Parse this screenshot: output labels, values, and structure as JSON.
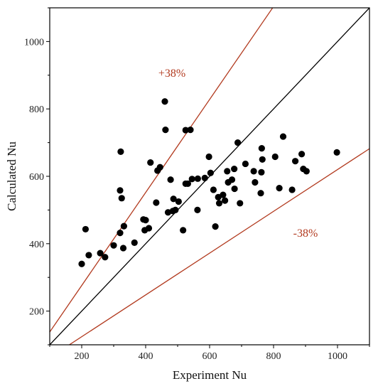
{
  "chart_data": {
    "type": "scatter",
    "title": "",
    "xlabel": "Experiment Nu",
    "ylabel": "Calculated Nu",
    "xlim": [
      100,
      1100
    ],
    "ylim": [
      100,
      1100
    ],
    "xticks": [
      200,
      400,
      600,
      800,
      1000
    ],
    "yticks": [
      200,
      400,
      600,
      800,
      1000
    ],
    "grid": false,
    "reference_lines": [
      {
        "label": "",
        "slope": 1.0,
        "color": "#000000"
      },
      {
        "label": "+38%",
        "slope": 1.38,
        "color": "#b23a1f"
      },
      {
        "label": "-38%",
        "slope": 0.62,
        "color": "#b23a1f"
      }
    ],
    "series": [
      {
        "marker_color": "#000000",
        "points": [
          [
            200,
            340
          ],
          [
            212,
            443
          ],
          [
            222,
            366
          ],
          [
            258,
            372
          ],
          [
            273,
            360
          ],
          [
            300,
            395
          ],
          [
            320,
            558
          ],
          [
            322,
            673
          ],
          [
            325,
            535
          ],
          [
            320,
            432
          ],
          [
            330,
            387
          ],
          [
            332,
            452
          ],
          [
            365,
            403
          ],
          [
            393,
            472
          ],
          [
            397,
            440
          ],
          [
            400,
            470
          ],
          [
            410,
            446
          ],
          [
            415,
            641
          ],
          [
            433,
            522
          ],
          [
            437,
            617
          ],
          [
            445,
            627
          ],
          [
            460,
            822
          ],
          [
            462,
            738
          ],
          [
            470,
            493
          ],
          [
            478,
            590
          ],
          [
            485,
            497
          ],
          [
            487,
            533
          ],
          [
            493,
            500
          ],
          [
            503,
            525
          ],
          [
            517,
            440
          ],
          [
            525,
            737
          ],
          [
            525,
            578
          ],
          [
            532,
            578
          ],
          [
            540,
            738
          ],
          [
            545,
            592
          ],
          [
            562,
            500
          ],
          [
            563,
            593
          ],
          [
            585,
            595
          ],
          [
            598,
            658
          ],
          [
            603,
            610
          ],
          [
            612,
            560
          ],
          [
            618,
            451
          ],
          [
            627,
            538
          ],
          [
            630,
            520
          ],
          [
            642,
            545
          ],
          [
            648,
            528
          ],
          [
            655,
            615
          ],
          [
            658,
            582
          ],
          [
            670,
            590
          ],
          [
            677,
            622
          ],
          [
            678,
            563
          ],
          [
            688,
            700
          ],
          [
            695,
            520
          ],
          [
            712,
            637
          ],
          [
            738,
            615
          ],
          [
            742,
            582
          ],
          [
            760,
            550
          ],
          [
            762,
            612
          ],
          [
            763,
            683
          ],
          [
            765,
            650
          ],
          [
            805,
            658
          ],
          [
            818,
            565
          ],
          [
            830,
            718
          ],
          [
            858,
            560
          ],
          [
            868,
            645
          ],
          [
            888,
            666
          ],
          [
            893,
            622
          ],
          [
            903,
            615
          ],
          [
            998,
            671
          ]
        ]
      }
    ]
  }
}
